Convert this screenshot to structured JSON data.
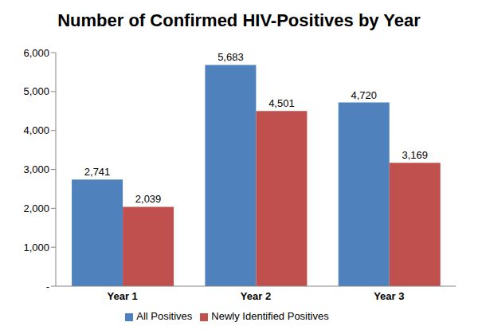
{
  "chart_data": {
    "type": "bar",
    "title": "Number of Confirmed HIV-Positives by Year",
    "categories": [
      "Year 1",
      "Year 2",
      "Year 3"
    ],
    "series": [
      {
        "name": "All Positives",
        "color": "#4f81bd",
        "values": [
          2741,
          5683,
          4720
        ],
        "value_labels": [
          "2,741",
          "5,683",
          "4,720"
        ]
      },
      {
        "name": "Newly Identified Positives",
        "color": "#c0504d",
        "values": [
          2039,
          4501,
          3169
        ],
        "value_labels": [
          "2,039",
          "4,501",
          "3,169"
        ]
      }
    ],
    "ylim": [
      0,
      6000
    ],
    "yticks": [
      {
        "value": 0,
        "label": "-"
      },
      {
        "value": 1000,
        "label": "1,000"
      },
      {
        "value": 2000,
        "label": "2,000"
      },
      {
        "value": 3000,
        "label": "3,000"
      },
      {
        "value": 4000,
        "label": "4,000"
      },
      {
        "value": 5000,
        "label": "5,000"
      },
      {
        "value": 6000,
        "label": "6,000"
      }
    ],
    "grid": false,
    "legend": "bottom",
    "data_labels": true
  }
}
